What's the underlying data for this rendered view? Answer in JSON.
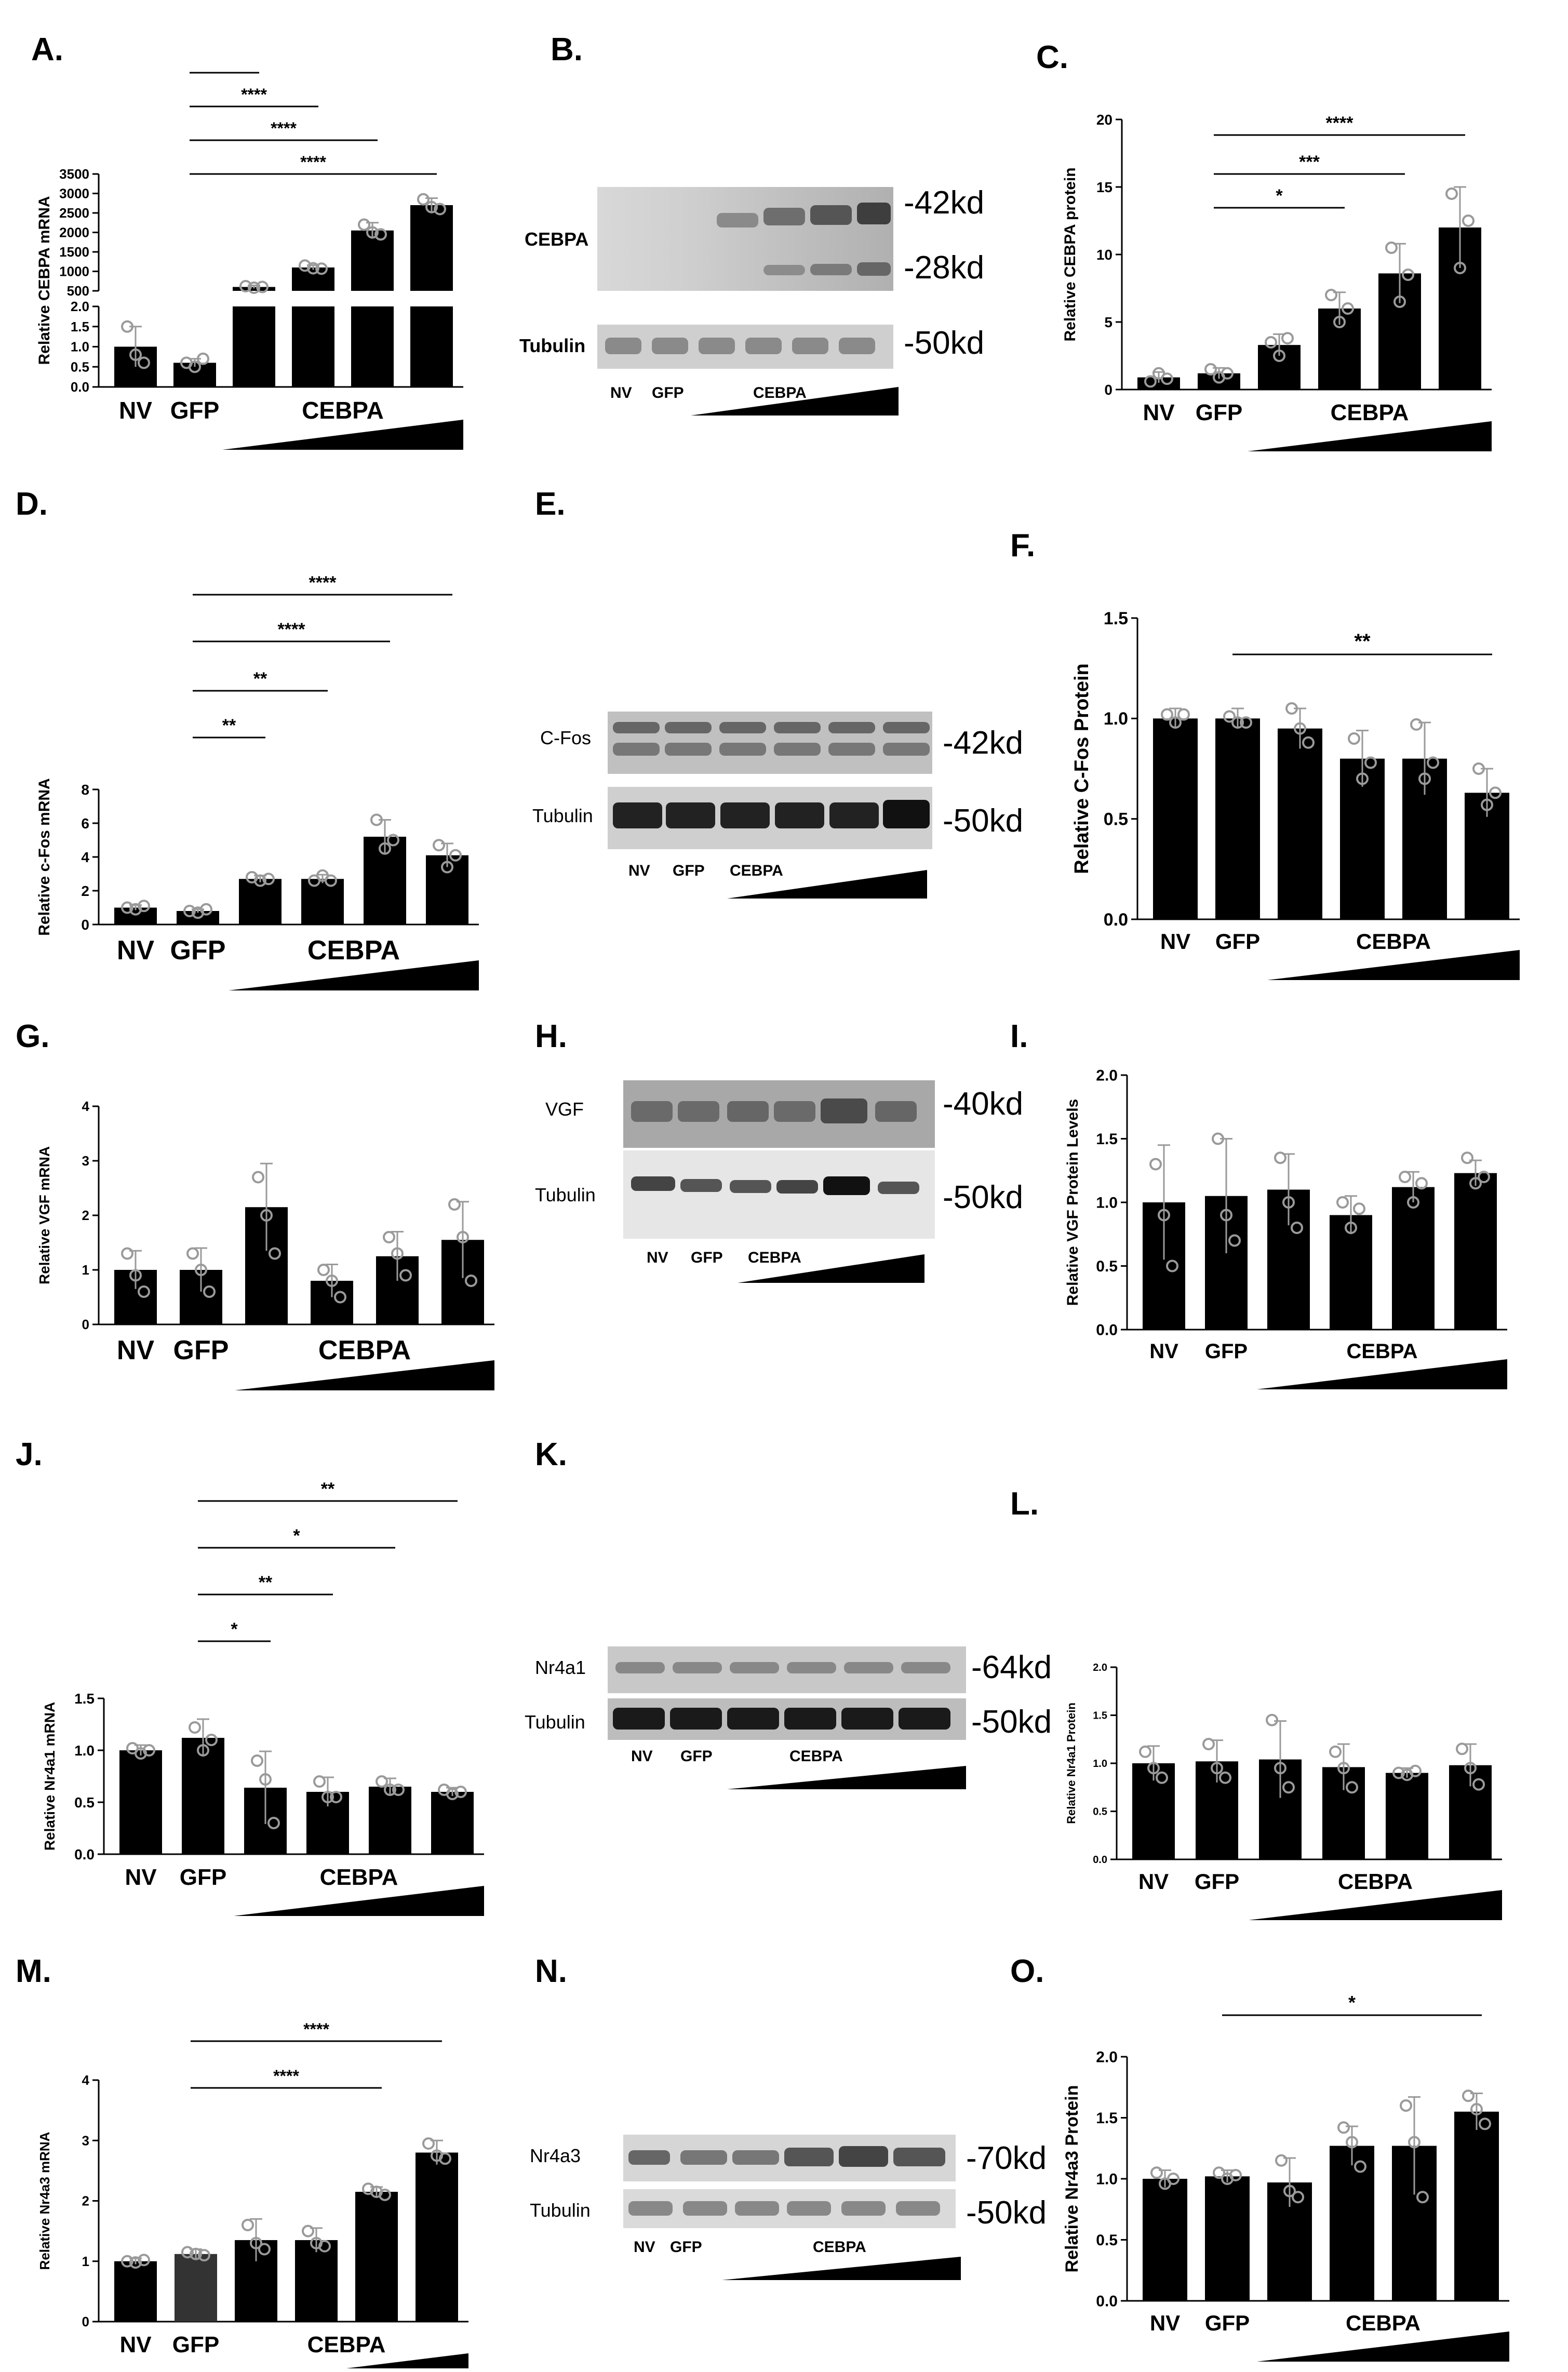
{
  "panels": {
    "A": "A.",
    "B": "B.",
    "C": "C.",
    "D": "D.",
    "E": "E.",
    "F": "F.",
    "G": "G.",
    "H": "H.",
    "I": "I.",
    "J": "J.",
    "K": "K.",
    "L": "L.",
    "M": "M.",
    "N": "N.",
    "O": "O."
  },
  "colors": {
    "bar": "#000000",
    "bar_gfp_m": "#333333",
    "point": "#9a9a9a",
    "line": "#000000"
  },
  "chart_data": [
    {
      "id": "A",
      "type": "bar",
      "ylabel": "Relative CEBPA mRNA",
      "categories": [
        "NV",
        "GFP",
        "CEBPA-1",
        "CEBPA-2",
        "CEBPA-3",
        "CEBPA-4"
      ],
      "values": [
        1.0,
        0.6,
        600,
        1100,
        2050,
        2700
      ],
      "errors": [
        0.5,
        0.1,
        40,
        60,
        200,
        180
      ],
      "points": [
        [
          1.5,
          0.8,
          0.6
        ],
        [
          0.6,
          0.5,
          0.7
        ],
        [
          620,
          580,
          600
        ],
        [
          1150,
          1080,
          1070
        ],
        [
          2200,
          2000,
          1950
        ],
        [
          2850,
          2650,
          2600
        ]
      ],
      "axis_break": {
        "lower_range": [
          0,
          2.0
        ],
        "upper_range": [
          500,
          3500
        ]
      },
      "yticks_lower": [
        "0.0",
        "0.5",
        "1.0",
        "1.5",
        "2.0"
      ],
      "yticks_upper": [
        "500",
        "1000",
        "1500",
        "2000",
        "2500",
        "3000",
        "3500"
      ],
      "group_labels": [
        "NV",
        "GFP",
        "CEBPA"
      ],
      "significance": [
        {
          "from": 1,
          "to": 2,
          "label": "****"
        },
        {
          "from": 1,
          "to": 3,
          "label": "****"
        },
        {
          "from": 1,
          "to": 4,
          "label": "****"
        },
        {
          "from": 1,
          "to": 5,
          "label": "****"
        }
      ]
    },
    {
      "id": "C",
      "type": "bar",
      "ylabel": "Relative CEBPA protein",
      "categories": [
        "NV",
        "GFP",
        "CEBPA-1",
        "CEBPA-2",
        "CEBPA-3",
        "CEBPA-4"
      ],
      "values": [
        0.9,
        1.2,
        3.3,
        6.0,
        8.6,
        12.0
      ],
      "errors": [
        0.4,
        0.4,
        0.8,
        1.2,
        2.2,
        3.0
      ],
      "points": [
        [
          0.6,
          1.2,
          0.8
        ],
        [
          1.5,
          0.9,
          1.2
        ],
        [
          3.5,
          2.5,
          3.8
        ],
        [
          7.0,
          5.0,
          6.0
        ],
        [
          10.5,
          6.5,
          8.5
        ],
        [
          14.5,
          9.0,
          12.5
        ]
      ],
      "ylim": [
        0,
        20
      ],
      "yticks": [
        "0",
        "5",
        "10",
        "15",
        "20"
      ],
      "group_labels": [
        "NV",
        "GFP",
        "CEBPA"
      ],
      "significance": [
        {
          "from": 1,
          "to": 3,
          "label": "*"
        },
        {
          "from": 1,
          "to": 4,
          "label": "***"
        },
        {
          "from": 1,
          "to": 5,
          "label": "****"
        }
      ]
    },
    {
      "id": "D",
      "type": "bar",
      "ylabel": "Relative c-Fos mRNA",
      "categories": [
        "NV",
        "GFP",
        "CEBPA-1",
        "CEBPA-2",
        "CEBPA-3",
        "CEBPA-4"
      ],
      "values": [
        1.0,
        0.8,
        2.7,
        2.7,
        5.2,
        4.1
      ],
      "errors": [
        0.15,
        0.1,
        0.2,
        0.25,
        1.0,
        0.7
      ],
      "points": [
        [
          1.0,
          0.9,
          1.1
        ],
        [
          0.8,
          0.7,
          0.9
        ],
        [
          2.8,
          2.6,
          2.7
        ],
        [
          2.6,
          2.9,
          2.6
        ],
        [
          6.2,
          4.5,
          5.0
        ],
        [
          4.7,
          3.4,
          4.1
        ]
      ],
      "ylim": [
        0,
        8
      ],
      "yticks": [
        "0",
        "2",
        "4",
        "6",
        "8"
      ],
      "group_labels": [
        "NV",
        "GFP",
        "CEBPA"
      ],
      "significance": [
        {
          "from": 1,
          "to": 2,
          "label": "**"
        },
        {
          "from": 1,
          "to": 3,
          "label": "**"
        },
        {
          "from": 1,
          "to": 4,
          "label": "****"
        },
        {
          "from": 1,
          "to": 5,
          "label": "****"
        }
      ]
    },
    {
      "id": "F",
      "type": "bar",
      "ylabel": "Relative C-Fos Protein",
      "categories": [
        "NV",
        "GFP",
        "CEBPA-1",
        "CEBPA-2",
        "CEBPA-3",
        "CEBPA-4"
      ],
      "values": [
        1.0,
        1.0,
        0.95,
        0.8,
        0.8,
        0.63
      ],
      "errors": [
        0.05,
        0.05,
        0.1,
        0.14,
        0.18,
        0.12
      ],
      "points": [
        [
          1.02,
          0.98,
          1.02
        ],
        [
          1.01,
          0.98,
          0.98
        ],
        [
          1.05,
          0.95,
          0.88
        ],
        [
          0.9,
          0.7,
          0.78
        ],
        [
          0.97,
          0.7,
          0.78
        ],
        [
          0.75,
          0.57,
          0.63
        ]
      ],
      "ylim": [
        0,
        1.5
      ],
      "yticks": [
        "0.0",
        "0.5",
        "1.0",
        "1.5"
      ],
      "group_labels": [
        "NV",
        "GFP",
        "CEBPA"
      ],
      "significance": [
        {
          "from": 1,
          "to": 5,
          "label": "**"
        }
      ]
    },
    {
      "id": "G",
      "type": "bar",
      "ylabel": "Relative VGF mRNA",
      "categories": [
        "NV",
        "GFP",
        "CEBPA-1",
        "CEBPA-2",
        "CEBPA-3",
        "CEBPA-4"
      ],
      "values": [
        1.0,
        1.0,
        2.15,
        0.8,
        1.25,
        1.55
      ],
      "errors": [
        0.35,
        0.4,
        0.8,
        0.3,
        0.45,
        0.7
      ],
      "points": [
        [
          1.3,
          0.9,
          0.6
        ],
        [
          1.3,
          1.0,
          0.6
        ],
        [
          2.7,
          2.0,
          1.3
        ],
        [
          1.0,
          0.8,
          0.5
        ],
        [
          1.6,
          1.3,
          0.9
        ],
        [
          2.2,
          1.6,
          0.8
        ]
      ],
      "ylim": [
        0,
        4
      ],
      "yticks": [
        "0",
        "1",
        "2",
        "3",
        "4"
      ],
      "group_labels": [
        "NV",
        "GFP",
        "CEBPA"
      ],
      "significance": []
    },
    {
      "id": "I",
      "type": "bar",
      "ylabel": "Relative VGF Protein Levels",
      "categories": [
        "NV",
        "GFP",
        "CEBPA-1",
        "CEBPA-2",
        "CEBPA-3",
        "CEBPA-4"
      ],
      "values": [
        1.0,
        1.05,
        1.1,
        0.9,
        1.12,
        1.23
      ],
      "errors": [
        0.45,
        0.45,
        0.28,
        0.15,
        0.12,
        0.1
      ],
      "points": [
        [
          1.3,
          0.9,
          0.5
        ],
        [
          1.5,
          0.9,
          0.7
        ],
        [
          1.35,
          1.0,
          0.8
        ],
        [
          1.0,
          0.8,
          0.95
        ],
        [
          1.2,
          1.0,
          1.15
        ],
        [
          1.35,
          1.15,
          1.2
        ]
      ],
      "ylim": [
        0,
        2.0
      ],
      "yticks": [
        "0.0",
        "0.5",
        "1.0",
        "1.5",
        "2.0"
      ],
      "group_labels": [
        "NV",
        "GFP",
        "CEBPA"
      ],
      "significance": []
    },
    {
      "id": "J",
      "type": "bar",
      "ylabel": "Relative Nr4a1 mRNA",
      "categories": [
        "NV",
        "GFP",
        "CEBPA-1",
        "CEBPA-2",
        "CEBPA-3",
        "CEBPA-4"
      ],
      "values": [
        1.0,
        1.12,
        0.64,
        0.6,
        0.65,
        0.6
      ],
      "errors": [
        0.05,
        0.18,
        0.35,
        0.14,
        0.08,
        0.04
      ],
      "points": [
        [
          1.02,
          0.97,
          1.0
        ],
        [
          1.22,
          1.0,
          1.1
        ],
        [
          0.9,
          0.72,
          0.3
        ],
        [
          0.7,
          0.55,
          0.55
        ],
        [
          0.7,
          0.62,
          0.62
        ],
        [
          0.62,
          0.58,
          0.6
        ]
      ],
      "ylim": [
        0,
        1.5
      ],
      "yticks": [
        "0.0",
        "0.5",
        "1.0",
        "1.5"
      ],
      "group_labels": [
        "NV",
        "GFP",
        "CEBPA"
      ],
      "significance": [
        {
          "from": 1,
          "to": 2,
          "label": "*"
        },
        {
          "from": 1,
          "to": 3,
          "label": "**"
        },
        {
          "from": 1,
          "to": 4,
          "label": "*"
        },
        {
          "from": 1,
          "to": 5,
          "label": "**"
        }
      ]
    },
    {
      "id": "L",
      "type": "bar",
      "ylabel": "Relative Nr4a1 Protein",
      "categories": [
        "NV",
        "GFP",
        "CEBPA-1",
        "CEBPA-2",
        "CEBPA-3",
        "CEBPA-4"
      ],
      "values": [
        1.0,
        1.02,
        1.04,
        0.96,
        0.9,
        0.98
      ],
      "errors": [
        0.18,
        0.22,
        0.4,
        0.24,
        0.05,
        0.22
      ],
      "points": [
        [
          1.12,
          0.95,
          0.85
        ],
        [
          1.2,
          0.95,
          0.85
        ],
        [
          1.45,
          0.95,
          0.75
        ],
        [
          1.12,
          0.95,
          0.75
        ],
        [
          0.9,
          0.88,
          0.92
        ],
        [
          1.15,
          0.95,
          0.78
        ]
      ],
      "ylim": [
        0,
        2.0
      ],
      "yticks": [
        "0.0",
        "0.5",
        "1.0",
        "1.5",
        "2.0"
      ],
      "group_labels": [
        "NV",
        "GFP",
        "CEBPA"
      ],
      "significance": []
    },
    {
      "id": "M",
      "type": "bar",
      "ylabel": "Relative Nr4a3 mRNA",
      "categories": [
        "NV",
        "GFP",
        "CEBPA-1",
        "CEBPA-2",
        "CEBPA-3",
        "CEBPA-4"
      ],
      "values": [
        1.0,
        1.12,
        1.35,
        1.35,
        2.15,
        2.8
      ],
      "errors": [
        0.05,
        0.08,
        0.35,
        0.2,
        0.08,
        0.2
      ],
      "points": [
        [
          1.0,
          0.98,
          1.02
        ],
        [
          1.15,
          1.12,
          1.1
        ],
        [
          1.6,
          1.3,
          1.2
        ],
        [
          1.5,
          1.3,
          1.25
        ],
        [
          2.2,
          2.15,
          2.1
        ],
        [
          2.95,
          2.75,
          2.7
        ]
      ],
      "ylim": [
        0,
        4
      ],
      "yticks": [
        "0",
        "1",
        "2",
        "3",
        "4"
      ],
      "group_labels": [
        "NV",
        "GFP",
        "CEBPA"
      ],
      "significance": [
        {
          "from": 1,
          "to": 4,
          "label": "****"
        },
        {
          "from": 1,
          "to": 5,
          "label": "****"
        }
      ]
    },
    {
      "id": "O",
      "type": "bar",
      "ylabel": "Relative Nr4a3 Protein",
      "categories": [
        "NV",
        "GFP",
        "CEBPA-1",
        "CEBPA-2",
        "CEBPA-3",
        "CEBPA-4"
      ],
      "values": [
        1.0,
        1.02,
        0.97,
        1.27,
        1.27,
        1.55
      ],
      "errors": [
        0.07,
        0.05,
        0.2,
        0.16,
        0.4,
        0.15
      ],
      "points": [
        [
          1.05,
          0.96,
          1.0
        ],
        [
          1.05,
          1.0,
          1.03
        ],
        [
          1.15,
          0.9,
          0.85
        ],
        [
          1.42,
          1.3,
          1.1
        ],
        [
          1.6,
          1.3,
          0.85
        ],
        [
          1.68,
          1.57,
          1.45
        ]
      ],
      "ylim": [
        0,
        2.0
      ],
      "yticks": [
        "0.0",
        "0.5",
        "1.0",
        "1.5",
        "2.0"
      ],
      "group_labels": [
        "NV",
        "GFP",
        "CEBPA"
      ],
      "significance": [
        {
          "from": 1,
          "to": 5,
          "label": "*"
        }
      ]
    }
  ],
  "blots": {
    "B": {
      "protein": "CEBPA",
      "kd_top": "-42kd",
      "kd_mid": "-28kd",
      "control": "Tubulin",
      "control_kd": "-50kd",
      "lanes": [
        "NV",
        "GFP",
        "CEBPA"
      ]
    },
    "E": {
      "protein": "C-Fos",
      "kd_top": "-42kd",
      "control": "Tubulin",
      "control_kd": "-50kd",
      "lanes": [
        "NV",
        "GFP",
        "CEBPA"
      ]
    },
    "H": {
      "protein": "VGF",
      "kd_top": "-40kd",
      "control": "Tubulin",
      "control_kd": "-50kd",
      "lanes": [
        "NV",
        "GFP",
        "CEBPA"
      ]
    },
    "K": {
      "protein": "Nr4a1",
      "kd_top": "-64kd",
      "control": "Tubulin",
      "control_kd": "-50kd",
      "lanes": [
        "NV",
        "GFP",
        "CEBPA"
      ]
    },
    "N": {
      "protein": "Nr4a3",
      "kd_top": "-70kd",
      "control": "Tubulin",
      "control_kd": "-50kd",
      "lanes": [
        "NV",
        "GFP",
        "CEBPA"
      ]
    }
  }
}
